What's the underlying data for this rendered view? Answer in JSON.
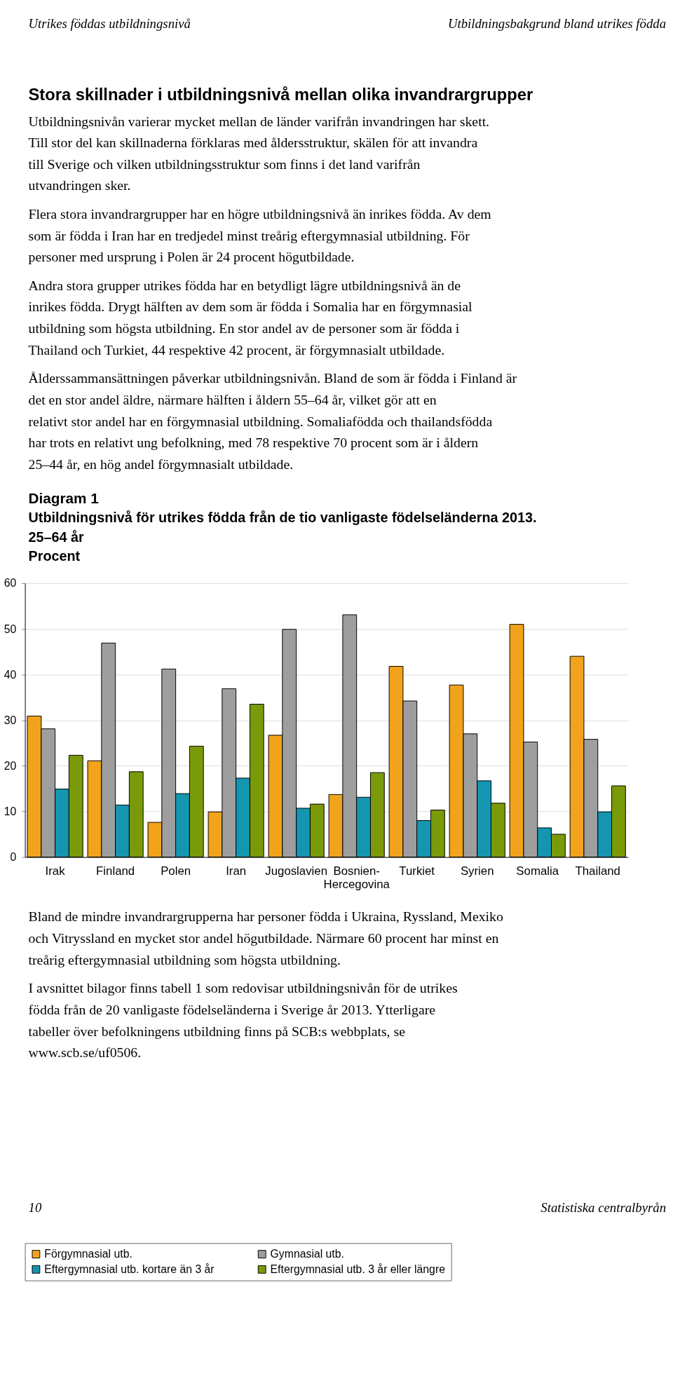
{
  "chart_data": {
    "type": "bar",
    "title": "Utbildningsnivå för utrikes födda från de tio vanligaste födelseländerna 2013.",
    "subtitle": "25–64 år",
    "ylabel": "Procent",
    "categories": [
      "Irak",
      "Finland",
      "Polen",
      "Iran",
      "Jugoslavien",
      "Bosnien-Hercegovina",
      "Turkiet",
      "Syrien",
      "Somalia",
      "Thailand"
    ],
    "series": [
      {
        "name": "Förgymnasial utb.",
        "color": "#f2a31c",
        "values": [
          30.9,
          21.1,
          7.6,
          9.9,
          26.7,
          13.7,
          41.8,
          37.7,
          51.0,
          44.0
        ]
      },
      {
        "name": "Gymnasial utb.",
        "color": "#9e9e9e",
        "values": [
          28.1,
          46.9,
          41.2,
          36.9,
          49.9,
          53.1,
          34.2,
          27.0,
          25.2,
          25.8
        ]
      },
      {
        "name": "Eftergymnasial utb. kortare än 3 år",
        "color": "#1596b0",
        "values": [
          14.9,
          11.4,
          13.9,
          17.3,
          10.7,
          13.1,
          8.0,
          16.7,
          6.4,
          9.9
        ]
      },
      {
        "name": "Eftergymnasial utb. 3 år eller längre",
        "color": "#7a9a0a",
        "values": [
          22.3,
          18.7,
          24.3,
          33.5,
          11.6,
          18.5,
          10.3,
          11.8,
          5.0,
          15.6
        ]
      }
    ],
    "ylim": [
      0,
      60
    ],
    "yticks": [
      0,
      10,
      20,
      30,
      40,
      50,
      60
    ],
    "grid": "y",
    "legend": "bottom",
    "annotations": [
      "Utrikes föddas utbildningsnivå",
      "Utbildningsbakgrund bland utrikes födda",
      "Stora skillnader i utbildningsnivå mellan olika invandrargrupper",
      "Utbildningsnivån varierar mycket mellan de länder varifrån invandringen har skett. Till stor del kan skillnaderna förklaras med åldersstruktur, skälen för att invandra till Sverige och vilken utbildningsstruktur som finns i det land varifrån utvandringen sker.",
      "Flera stora invandrargrupper har en högre utbildningsnivå än inrikes födda. Av dem som är födda i Iran har en tredjedel minst treårig eftergymnasial utbildning. För personer med ursprung i Polen är 24 procent högutbildade.",
      "Andra stora grupper utrikes födda har en betydligt lägre utbildningsnivå än de inrikes födda. Drygt hälften av dem som är födda i Somalia har en förgymnasial utbildning som högsta utbildning. En stor andel av de personer som är födda i Thailand och Turkiet, 44 respektive 42 procent, är förgymnasialt utbildade.",
      "Ålderssammansättningen påverkar utbildningsnivån. Bland de som är födda i Finland är det en stor andel äldre, närmare hälften i åldern 55–64 år, vilket gör att en relativt stor andel har en förgymnasial utbildning. Somaliafödda och thailandsfödda har trots en relativt ung befolkning, med 78 respektive 70 procent som är i åldern 25–44 år, en hög andel förgymnasialt utbildade.",
      "Diagram 1",
      "Bland de mindre invandrargrupperna har personer födda i Ukraina, Ryssland, Mexiko och Vitryssland en mycket stor andel högutbildade. Närmare 60 procent har minst en treårig eftergymnasial utbildning som högsta utbildning.",
      "I avsnittet bilagor finns tabell 1 som redovisar utbildningsnivån för de utrikes födda från de 20 vanligaste födelseländerna i Sverige år 2013. Ytterligare tabeller över befolkningens utbildning finns på SCB:s webbplats, se www.scb.se/uf0506.",
      "10",
      "Statistiska centralbyrån"
    ]
  }
}
